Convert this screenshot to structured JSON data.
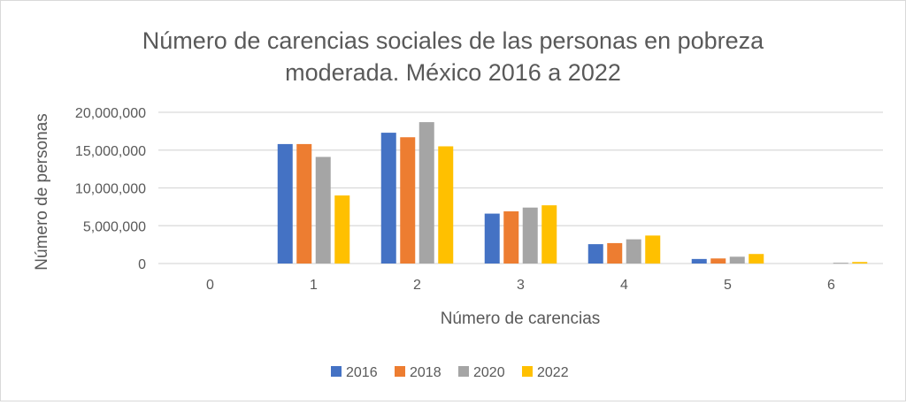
{
  "chart_data": {
    "type": "bar",
    "title_lines": [
      "Número de carencias sociales de las personas en pobreza",
      "moderada. México 2016 a 2022"
    ],
    "xlabel": "Número de carencias",
    "ylabel": "Número de personas",
    "categories": [
      "0",
      "1",
      "2",
      "3",
      "4",
      "5",
      "6"
    ],
    "ylim": [
      0,
      20000000
    ],
    "yticks": [
      0,
      5000000,
      10000000,
      15000000,
      20000000
    ],
    "ytick_labels": [
      "0",
      "5,000,000",
      "10,000,000",
      "15,000,000",
      "20,000,000"
    ],
    "grid": true,
    "legend_position": "bottom",
    "series": [
      {
        "name": "2016",
        "color": "#4472C4",
        "values": [
          0,
          15800000,
          17300000,
          6600000,
          2560000,
          600000,
          20000
        ]
      },
      {
        "name": "2018",
        "color": "#ED7D31",
        "values": [
          0,
          15800000,
          16700000,
          6900000,
          2700000,
          670000,
          30000
        ]
      },
      {
        "name": "2020",
        "color": "#A5A5A5",
        "values": [
          0,
          14100000,
          18700000,
          7400000,
          3200000,
          900000,
          100000
        ]
      },
      {
        "name": "2022",
        "color": "#FFC000",
        "values": [
          0,
          9000000,
          15500000,
          7700000,
          3700000,
          1260000,
          200000
        ]
      }
    ]
  }
}
